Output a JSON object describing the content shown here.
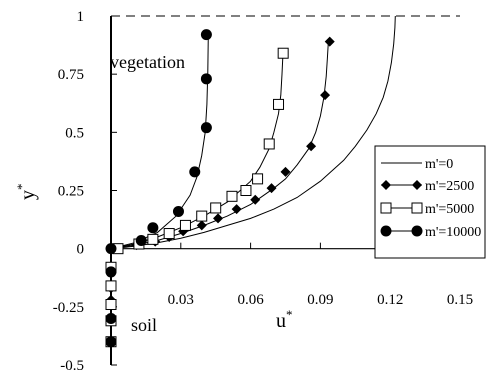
{
  "chart_data": {
    "type": "line",
    "xlabel": "u",
    "xlabel_sup": "*",
    "ylabel": "y",
    "ylabel_sup": "*",
    "xlim": [
      0,
      0.15
    ],
    "ylim": [
      -0.5,
      1
    ],
    "xticks": [
      {
        "value": 0.03,
        "label": "0.03"
      },
      {
        "value": 0.06,
        "label": "0.06"
      },
      {
        "value": 0.09,
        "label": "0.09"
      },
      {
        "value": 0.12,
        "label": "0.12"
      },
      {
        "value": 0.15,
        "label": "0.15"
      }
    ],
    "yticks": [
      {
        "value": 1,
        "label": "1"
      },
      {
        "value": 0.75,
        "label": "0.75"
      },
      {
        "value": 0.5,
        "label": "0.5"
      },
      {
        "value": 0.25,
        "label": "0.25"
      },
      {
        "value": 0,
        "label": "0"
      },
      {
        "value": -0.25,
        "label": "-0.25"
      },
      {
        "value": -0.5,
        "label": "-0.5"
      }
    ],
    "grid": false,
    "legend_position": "right",
    "annotations": [
      {
        "text": "vegetation"
      },
      {
        "text": "soil"
      }
    ],
    "series": [
      {
        "name": "m'=0",
        "marker": "none",
        "color": "#000000",
        "curve": {
          "x": [
            0.0,
            0.01,
            0.02,
            0.03,
            0.04,
            0.05,
            0.06,
            0.07,
            0.08,
            0.09,
            0.1,
            0.105,
            0.11,
            0.114,
            0.117,
            0.119,
            0.1205,
            0.1215,
            0.122,
            0.1222
          ],
          "y": [
            0.0,
            0.01,
            0.025,
            0.045,
            0.07,
            0.1,
            0.13,
            0.17,
            0.22,
            0.29,
            0.38,
            0.44,
            0.51,
            0.58,
            0.65,
            0.72,
            0.8,
            0.88,
            0.95,
            1.0
          ]
        },
        "points": {
          "x": [],
          "y": []
        }
      },
      {
        "name": "m'=2500",
        "marker": "diamond-filled",
        "color": "#000000",
        "curve": {
          "x": [
            0.0,
            0.01,
            0.02,
            0.03,
            0.04,
            0.05,
            0.06,
            0.07,
            0.075,
            0.08,
            0.085,
            0.088,
            0.09,
            0.0915,
            0.0925,
            0.093,
            0.0935
          ],
          "y": [
            0.0,
            0.015,
            0.035,
            0.065,
            0.1,
            0.14,
            0.19,
            0.26,
            0.3,
            0.36,
            0.43,
            0.5,
            0.57,
            0.65,
            0.74,
            0.82,
            0.9
          ]
        },
        "points": {
          "x": [
            0.0,
            0.011,
            0.019,
            0.025,
            0.031,
            0.039,
            0.046,
            0.054,
            0.062,
            0.069,
            0.075,
            0.086,
            0.092,
            0.094,
            0.0,
            0.0,
            0.0,
            0.0,
            0.0
          ],
          "y": [
            0.0,
            0.015,
            0.03,
            0.05,
            0.075,
            0.1,
            0.13,
            0.17,
            0.21,
            0.26,
            0.33,
            0.44,
            0.66,
            0.89,
            -0.1,
            -0.17,
            -0.22,
            -0.31,
            -0.4
          ]
        }
      },
      {
        "name": "m'=5000",
        "marker": "square-open",
        "color": "#000000",
        "curve": {
          "x": [
            0.0,
            0.01,
            0.02,
            0.03,
            0.04,
            0.05,
            0.06,
            0.064,
            0.068,
            0.07,
            0.072,
            0.073,
            0.0735,
            0.074
          ],
          "y": [
            0.0,
            0.02,
            0.05,
            0.09,
            0.14,
            0.2,
            0.29,
            0.35,
            0.43,
            0.5,
            0.58,
            0.66,
            0.75,
            0.86
          ]
        },
        "points": {
          "x": [
            0.003,
            0.012,
            0.018,
            0.025,
            0.032,
            0.039,
            0.045,
            0.052,
            0.058,
            0.063,
            0.068,
            0.072,
            0.074,
            0.0,
            0.0,
            0.0,
            0.0,
            0.0
          ],
          "y": [
            0.0,
            0.02,
            0.04,
            0.065,
            0.1,
            0.14,
            0.175,
            0.225,
            0.25,
            0.3,
            0.45,
            0.62,
            0.84,
            -0.08,
            -0.16,
            -0.24,
            -0.31,
            -0.4
          ]
        }
      },
      {
        "name": "m'=10000",
        "marker": "circle-filled",
        "color": "#000000",
        "curve": {
          "x": [
            0.0,
            0.01,
            0.02,
            0.028,
            0.034,
            0.037,
            0.039,
            0.0405,
            0.0412,
            0.0416,
            0.0418
          ],
          "y": [
            0.0,
            0.025,
            0.07,
            0.14,
            0.23,
            0.31,
            0.4,
            0.5,
            0.62,
            0.76,
            0.92
          ]
        },
        "points": {
          "x": [
            0.0,
            0.013,
            0.018,
            0.029,
            0.036,
            0.041,
            0.041,
            0.041,
            0.0,
            0.0,
            0.0
          ],
          "y": [
            0.0,
            0.035,
            0.09,
            0.16,
            0.33,
            0.52,
            0.73,
            0.92,
            -0.1,
            -0.3,
            -0.4
          ]
        }
      }
    ]
  }
}
